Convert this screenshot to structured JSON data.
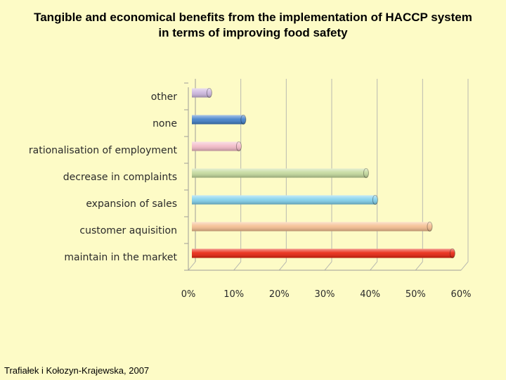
{
  "title": {
    "line1": "Tangible and economical benefits from the implementation of HACCP system",
    "line2": "in terms of improving food safety"
  },
  "source": "Trafiałek i Kołozyn-Krajewska, 2007",
  "chart_data": {
    "type": "bar",
    "orientation": "horizontal",
    "title": "Tangible and economical benefits from the implementation of HACCP system in terms of improving food safety",
    "xlabel": "",
    "ylabel": "",
    "xlim": [
      0,
      60
    ],
    "grid": true,
    "categories": [
      "maintain in the market",
      "customer aquisition",
      "expansion of sales",
      "decrease in complaints",
      "rationalisation of employment",
      "none",
      "other"
    ],
    "values": [
      57.5,
      52.5,
      40.5,
      38.5,
      10.5,
      11.5,
      4
    ],
    "colors": [
      "#e8200a",
      "#f5bd8e",
      "#7ed0ec",
      "#c3d99a",
      "#f2b9c6",
      "#3d7dc8",
      "#cbb5dd"
    ],
    "x_ticks": [
      0,
      10,
      20,
      30,
      40,
      50,
      60
    ],
    "x_tick_labels": [
      "0%",
      "10%",
      "20%",
      "30%",
      "40%",
      "50%",
      "60%"
    ]
  }
}
